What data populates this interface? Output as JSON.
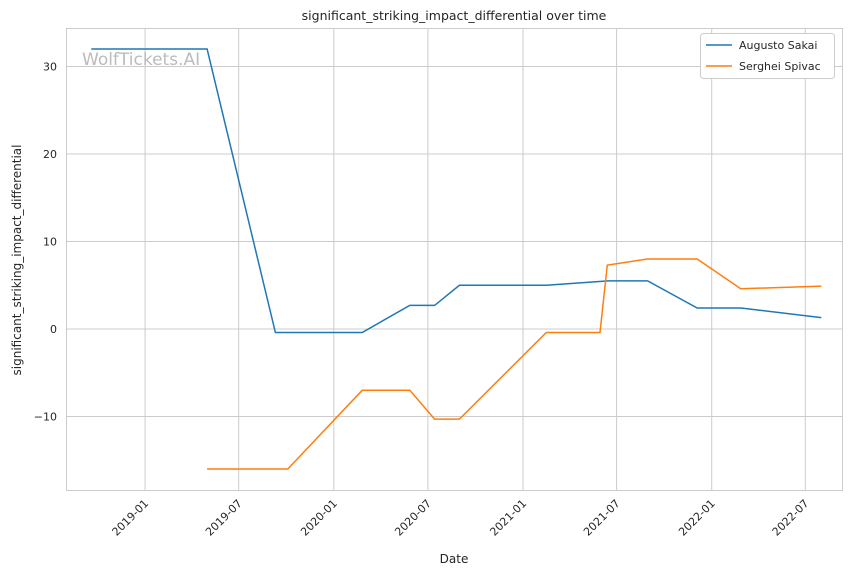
{
  "chart_data": {
    "type": "line",
    "title": "significant_striking_impact_differential over time",
    "xlabel": "Date",
    "ylabel": "significant_striking_impact_differential",
    "watermark": "WolfTickets.AI",
    "xlim": [
      "2018-08-01",
      "2022-09-10"
    ],
    "ylim": [
      -18.4,
      34.4
    ],
    "grid": true,
    "legend_position": "top-right",
    "x_ticks": [
      "2019-01",
      "2019-07",
      "2020-01",
      "2020-07",
      "2021-01",
      "2021-07",
      "2022-01",
      "2022-07"
    ],
    "y_ticks": [
      30,
      20,
      10,
      0,
      -10
    ],
    "y_tick_labels": [
      "30",
      "20",
      "10",
      "0",
      "−10"
    ],
    "series": [
      {
        "name": "Augusto Sakai",
        "color": "#1f77b4",
        "x": [
          "2018-09-19",
          "2019-05-01",
          "2019-09-10",
          "2020-02-25",
          "2020-05-27",
          "2020-07-14",
          "2020-08-31",
          "2021-02-15",
          "2021-06-15",
          "2021-08-30",
          "2021-12-04",
          "2022-02-26",
          "2022-08-01"
        ],
        "y": [
          32,
          32,
          -0.4,
          -0.4,
          2.7,
          2.7,
          5.0,
          5.0,
          5.5,
          5.5,
          2.4,
          2.4,
          1.3
        ]
      },
      {
        "name": "Serghei Spivac",
        "color": "#ff7f0e",
        "x": [
          "2019-05-01",
          "2019-10-04",
          "2020-02-25",
          "2020-05-27",
          "2020-07-14",
          "2020-08-31",
          "2021-02-15",
          "2021-05-30",
          "2021-06-13",
          "2021-08-30",
          "2021-12-04",
          "2022-02-26",
          "2022-08-01"
        ],
        "y": [
          -16,
          -16,
          -7,
          -7,
          -10.3,
          -10.3,
          -0.4,
          -0.4,
          7.3,
          8.0,
          8.0,
          4.6,
          4.9
        ]
      }
    ]
  }
}
